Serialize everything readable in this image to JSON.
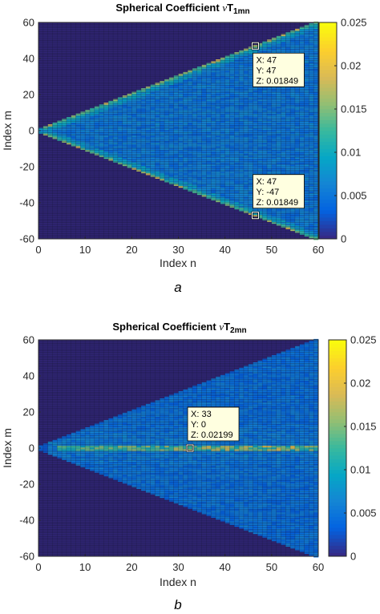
{
  "colors": {
    "background": "#ffffff",
    "axis": "#262626",
    "tooltip_bg": "#ffffe0",
    "tooltip_border": "#000000"
  },
  "chart_data": [
    {
      "type": "heatmap",
      "title_main": "Spherical Coefficient ",
      "title_symbol": "ν",
      "title_T": "T",
      "title_sub": "1mn",
      "xlabel": "Index n",
      "ylabel": "Index m",
      "caption": "a",
      "xlim": [
        0,
        60
      ],
      "ylim": [
        -60,
        60
      ],
      "xticks": [
        0,
        10,
        20,
        30,
        40,
        50,
        60
      ],
      "yticks": [
        -60,
        -40,
        -20,
        0,
        20,
        40,
        60
      ],
      "colormap": "parula",
      "clim": [
        0,
        0.025
      ],
      "colorbar_ticks": [
        "0",
        "0.005",
        "0.01",
        "0.015",
        "0.02",
        "0.025"
      ],
      "colorbar_tick_values": [
        0,
        0.005,
        0.01,
        0.015,
        0.02,
        0.025
      ],
      "pattern": "edge",
      "datatips": [
        {
          "x": 47,
          "y": 47,
          "lines": [
            "X: 47",
            "Y: 47",
            "Z: 0.01849"
          ],
          "box": "below"
        },
        {
          "x": 47,
          "y": -47,
          "lines": [
            "X: 47",
            "Y: -47",
            "Z: 0.01849"
          ],
          "box": "above"
        }
      ]
    },
    {
      "type": "heatmap",
      "title_main": "Spherical Coefficient ",
      "title_symbol": "ν",
      "title_T": "T",
      "title_sub": "2mn",
      "xlabel": "Index n",
      "ylabel": "Index m",
      "caption": "b",
      "xlim": [
        0,
        60
      ],
      "ylim": [
        -60,
        60
      ],
      "xticks": [
        0,
        10,
        20,
        30,
        40,
        50,
        60
      ],
      "yticks": [
        -60,
        -40,
        -20,
        0,
        20,
        40,
        60
      ],
      "colormap": "parula",
      "clim": [
        0,
        0.025
      ],
      "colorbar_ticks": [
        "0",
        "0.005",
        "0.01",
        "0.015",
        "0.02",
        "0.025"
      ],
      "colorbar_tick_values": [
        0,
        0.005,
        0.01,
        0.015,
        0.02,
        0.025
      ],
      "pattern": "center",
      "datatips": [
        {
          "x": 33,
          "y": 0,
          "lines": [
            "X: 33",
            "Y: 0",
            "Z: 0.02199"
          ],
          "box": "above"
        }
      ]
    }
  ]
}
